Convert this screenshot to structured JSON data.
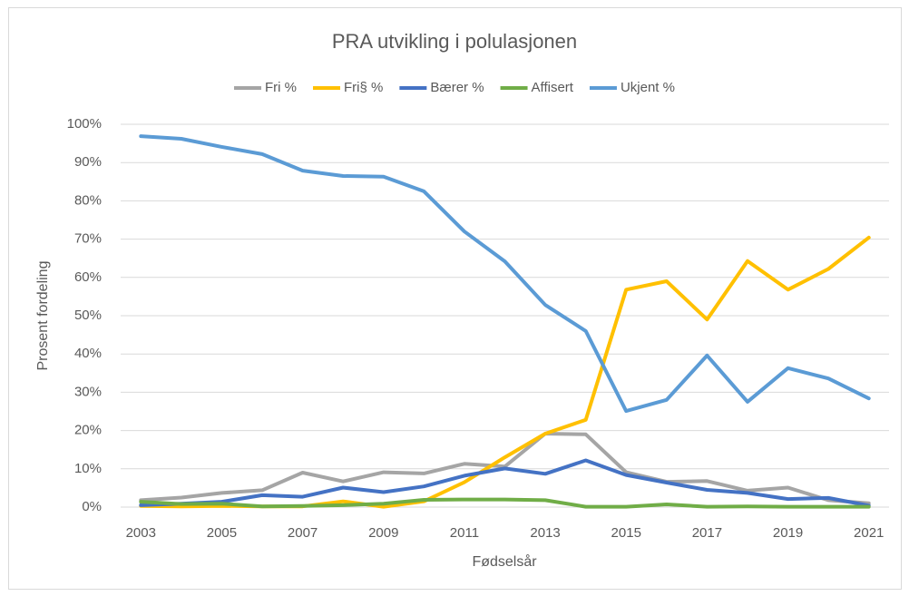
{
  "chart_data": {
    "type": "line",
    "title": "PRA utvikling i polulasjonen",
    "xlabel": "Fødselsår",
    "ylabel": "Prosent fordeling",
    "categories": [
      "2003",
      null,
      "2005",
      null,
      "2007",
      null,
      "2009",
      null,
      "2011",
      null,
      "2013",
      null,
      "2015",
      null,
      "2017",
      null,
      "2019",
      null,
      "2021"
    ],
    "series": [
      {
        "name": "Fri %",
        "color": "#a5a5a5",
        "values": [
          1.8,
          2.5,
          3.7,
          4.4,
          9,
          6.7,
          9.1,
          8.8,
          11.3,
          10.6,
          19.2,
          19,
          9.1,
          6.6,
          6.8,
          4.3,
          5.1,
          1.8,
          1
        ]
      },
      {
        "name": "Fri§ %",
        "color": "#ffc000",
        "values": [
          0.3,
          0.2,
          0.3,
          0.2,
          0.2,
          1.5,
          0.1,
          1.5,
          6.5,
          13,
          19.2,
          22.8,
          56.8,
          59,
          49,
          64.3,
          56.8,
          62.2,
          70.4
        ]
      },
      {
        "name": "Bærer %",
        "color": "#4472c4",
        "values": [
          0.5,
          0.9,
          1.4,
          3.1,
          2.7,
          5.1,
          3.9,
          5.4,
          8.2,
          10.1,
          8.7,
          12.2,
          8.4,
          6.4,
          4.5,
          3.7,
          2.1,
          2.4,
          0.4
        ]
      },
      {
        "name": "Affisert",
        "color": "#70ad47",
        "values": [
          1.4,
          0.8,
          0.9,
          0.2,
          0.3,
          0.5,
          0.9,
          1.9,
          2,
          2,
          1.8,
          0.1,
          0.1,
          0.7,
          0.1,
          0.2,
          0.1,
          0.1,
          0.1
        ]
      },
      {
        "name": "Ukjent %",
        "color": "#5b9bd5",
        "values": [
          96.9,
          96.2,
          94.1,
          92.2,
          87.9,
          86.5,
          86.3,
          82.5,
          72,
          64.2,
          52.8,
          46,
          25.1,
          28,
          39.6,
          27.5,
          36.3,
          33.6,
          28.4
        ]
      }
    ],
    "ylim": [
      0,
      100
    ],
    "yticks": [
      {
        "value": 0,
        "label": "0%"
      },
      {
        "value": 10,
        "label": "10%"
      },
      {
        "value": 20,
        "label": "20%"
      },
      {
        "value": 30,
        "label": "30%"
      },
      {
        "value": 40,
        "label": "40%"
      },
      {
        "value": 50,
        "label": "50%"
      },
      {
        "value": 60,
        "label": "60%"
      },
      {
        "value": 70,
        "label": "70%"
      },
      {
        "value": 80,
        "label": "80%"
      },
      {
        "value": 90,
        "label": "90%"
      },
      {
        "value": 100,
        "label": "100%"
      }
    ],
    "grid": true,
    "legend": "top"
  }
}
